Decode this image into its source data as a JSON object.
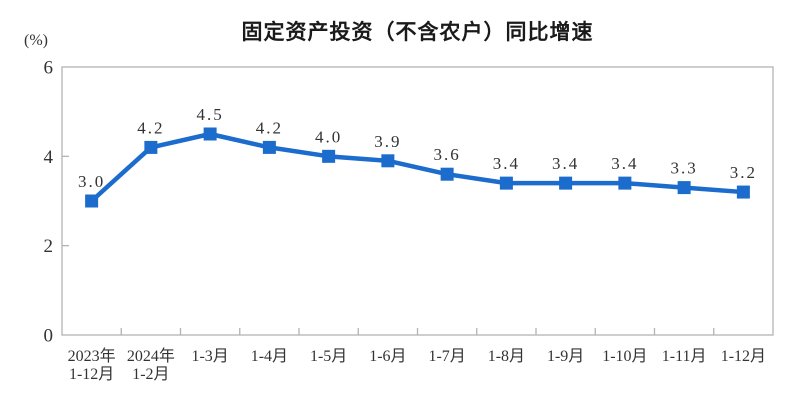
{
  "page": {
    "title": "固定资产投资（不含农户）同比增速",
    "y_axis_unit": "(%)"
  },
  "chart_data": {
    "type": "line",
    "title": "固定资产投资（不含农户）同比增速",
    "ylabel": "(%)",
    "xlabel": "",
    "categories": [
      "2023年\n1-12月",
      "2024年\n1-2月",
      "1-3月",
      "1-4月",
      "1-5月",
      "1-6月",
      "1-7月",
      "1-8月",
      "1-9月",
      "1-10月",
      "1-11月",
      "1-12月"
    ],
    "values": [
      3.0,
      4.2,
      4.5,
      4.2,
      4.0,
      3.9,
      3.6,
      3.4,
      3.4,
      3.4,
      3.3,
      3.2
    ],
    "value_label_decimals": 1,
    "ylim": [
      0,
      6
    ],
    "yticks": [
      0,
      2,
      4,
      6
    ],
    "grid": false,
    "legend_position": "none",
    "marker": "square",
    "line_color": "#1B6CCC",
    "axis_color": "#b3b3b3",
    "text_color": "#333333"
  }
}
